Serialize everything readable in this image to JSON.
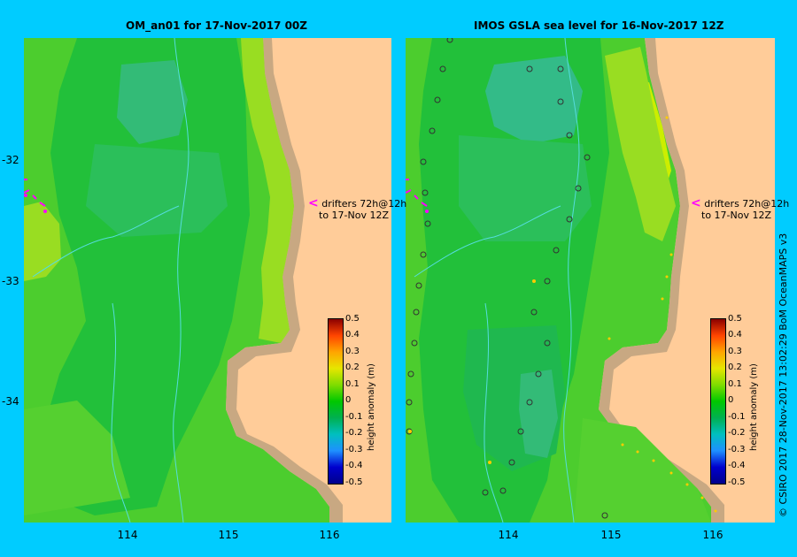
{
  "left_panel": {
    "title": "OM_an01  for 17-Nov-2017 00Z",
    "drifter_note_line1": "drifters 72h@12h",
    "drifter_note_line2": "to 17-Nov 12Z"
  },
  "right_panel": {
    "title": "IMOS GSLA sea level  for 16-Nov-2017 12Z",
    "drifter_note_line1": "drifters 72h@12h",
    "drifter_note_line2": "to 17-Nov 12Z"
  },
  "axes": {
    "lat_labels": [
      "-32",
      "-33",
      "-34"
    ],
    "lon_labels": [
      "114",
      "115",
      "116"
    ]
  },
  "colorbar": {
    "title": "height anomaly (m)",
    "labels": [
      "0.5",
      "0.4",
      "0.3",
      "0.2",
      "0.1",
      "0",
      "-0.1",
      "-0.2",
      "-0.3",
      "-0.4",
      "-0.5"
    ]
  },
  "credit": "© CSIRO 2017   28-Nov-2017 13:02:29 BoM OceanMAPS v3",
  "colors": {
    "background": "#00ccff",
    "land": "#ffcc99",
    "coast": "#c8a882",
    "drifter": "#ff00ff"
  }
}
